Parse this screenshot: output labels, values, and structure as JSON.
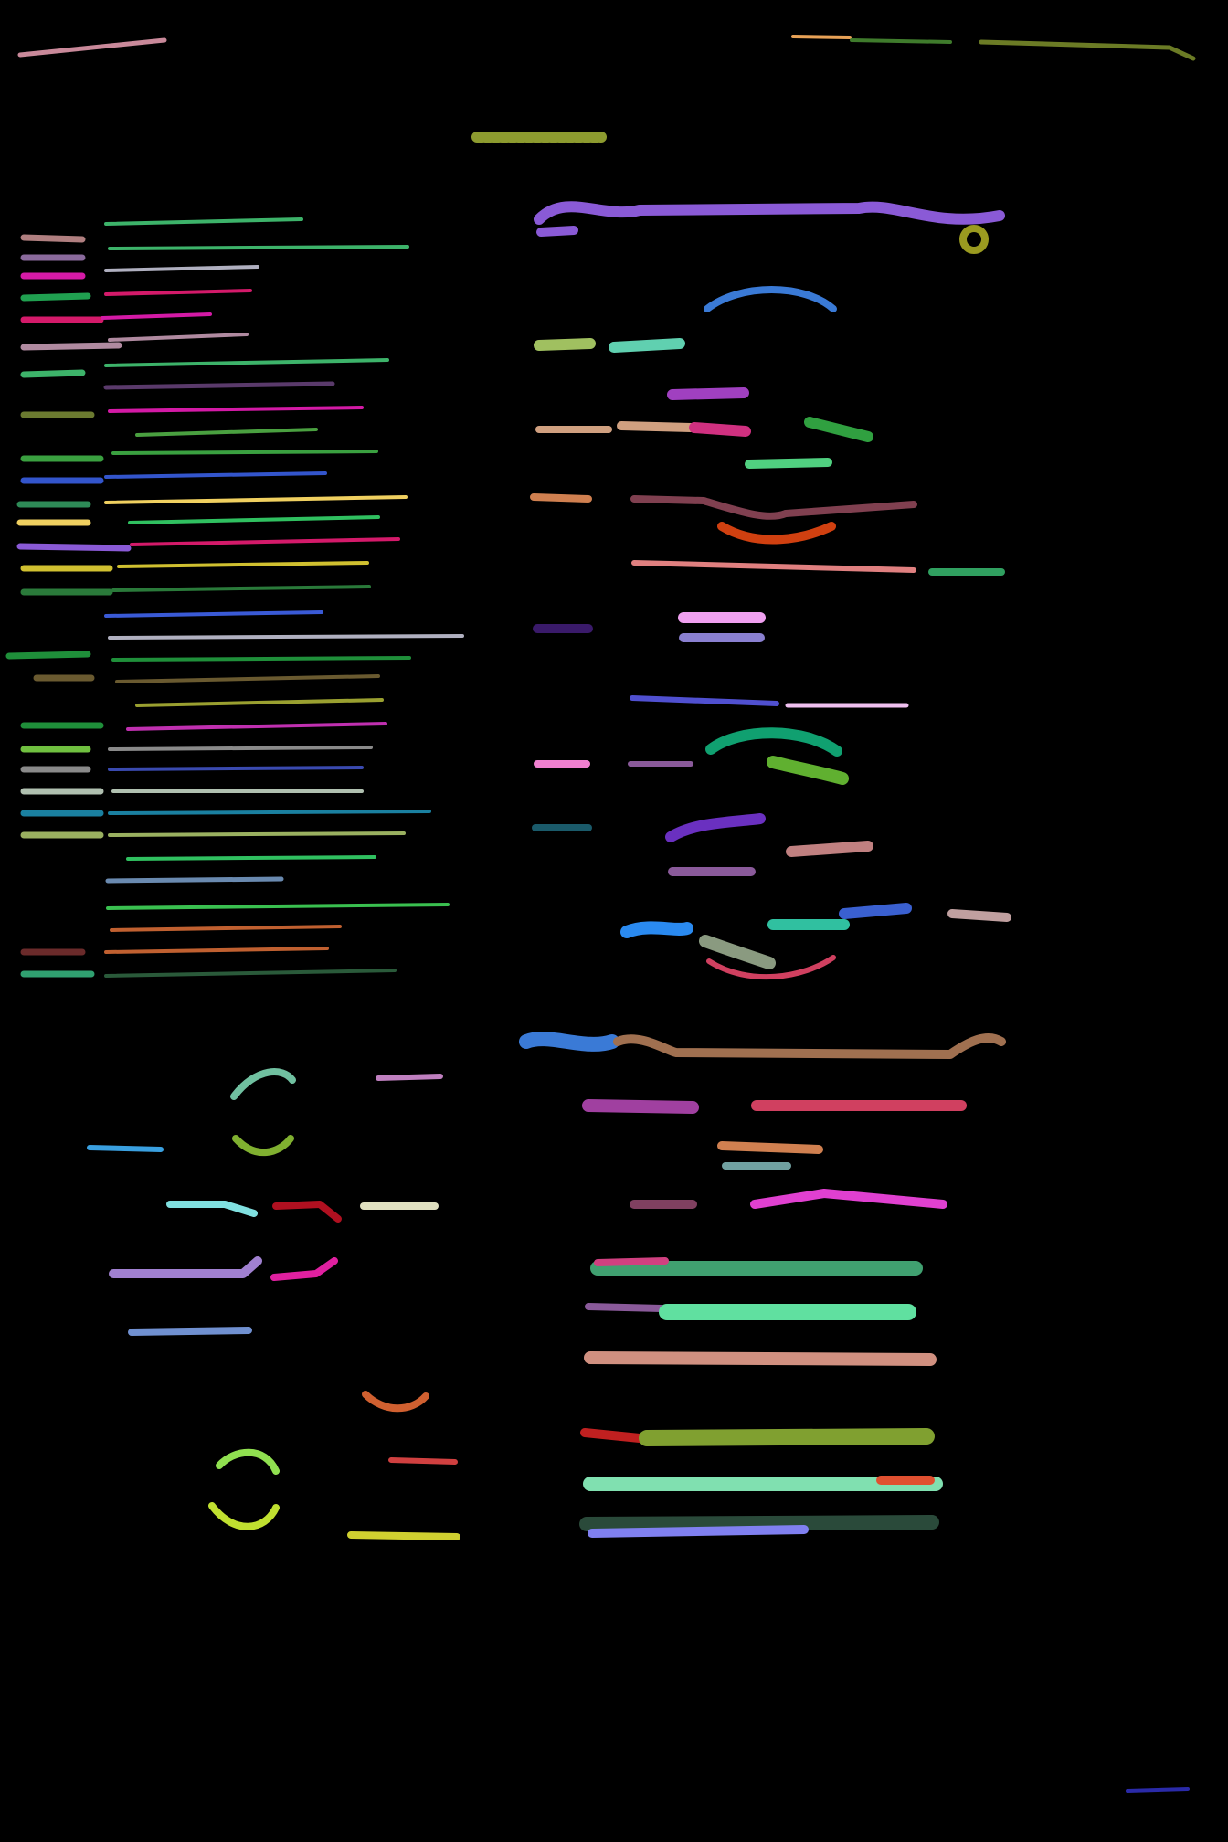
{
  "page": {
    "background": "#000000",
    "description_note": ""
  },
  "strokes": [
    {
      "name": "header-left-stroke",
      "color": "#c9899a"
    },
    {
      "name": "header-right-stroke-1",
      "color": "#e8a257"
    },
    {
      "name": "header-right-stroke-2",
      "color": "#3f7b2c"
    },
    {
      "name": "header-right-stroke-3",
      "color": "#6b7b25"
    },
    {
      "name": "title-stroke",
      "color": "#8d9b2f"
    },
    {
      "name": "footer-stroke",
      "color": "#2a2aa8"
    }
  ],
  "left_list_colors": [
    "#b07f80",
    "#8a6a9c",
    "#d41aa6",
    "#20a050",
    "#d41a6a",
    "#b08aa0",
    "#3db36a",
    "#5a3a6b",
    "#6b7a30",
    "#4aa040",
    "#3aa040",
    "#3355cc",
    "#2e8b57",
    "#f0d060",
    "#8a5ad6",
    "#d0c030",
    "#2a7a3a",
    "#3a5ad6",
    "#b0b0c0",
    "#1f8f3a",
    "#6a5a30",
    "#9aa030",
    "#c030b0",
    "#70c040",
    "#8a8a8a",
    "#3a4ab0",
    "#b0c0b0",
    "#1a80a0",
    "#9ab060",
    "#30c060",
    "#6a8ab0",
    "#3ac050",
    "#c06030",
    "#6a2a2a",
    "#30a070",
    "#2a5a3a"
  ],
  "right_colors": [
    "#8a5ad6",
    "#3a7ad6",
    "#a0c060",
    "#60d0b0",
    "#a040c0",
    "#d0a080",
    "#d03080",
    "#30a040",
    "#50d080",
    "#d08050",
    "#804050",
    "#d04010",
    "#e08080",
    "#30a060",
    "#3a1a6a",
    "#f0a0f0",
    "#8a80d0",
    "#5050d0",
    "#f0c0f0",
    "#10a070",
    "#60b030",
    "#f080d0",
    "#8a5a9a",
    "#1a5a6a",
    "#6a30c0",
    "#c08080",
    "#8a5a9a",
    "#2a8af0",
    "#30c0a0",
    "#8a9a80",
    "#d04060",
    "#3a60d0",
    "#c0a0a0",
    "#d08050"
  ],
  "bottom_left_colors": [
    "#70c0a0",
    "#80b030",
    "#c080c0",
    "#3aa0e0",
    "#80e0e0",
    "#b01020",
    "#e0e0c0",
    "#a080d0",
    "#e020a0",
    "#7090d0",
    "#d06030",
    "#90e050",
    "#d04040",
    "#c0e030",
    "#d0d030"
  ],
  "bottom_right_colors": [
    "#a040a0",
    "#d04060",
    "#d08050",
    "#70a0a0",
    "#804060",
    "#e040d0",
    "#40a070",
    "#d04080",
    "#8a5a9a",
    "#60e0a0",
    "#d09080",
    "#c02020",
    "#80a030",
    "#80e0b0",
    "#e05030",
    "#2a4a3a",
    "#8080f0"
  ]
}
